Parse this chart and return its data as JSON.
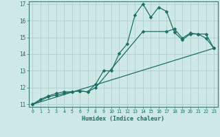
{
  "xlabel": "Humidex (Indice chaleur)",
  "bg_color": "#cde8e5",
  "line_color": "#1a6e64",
  "grid_color": "#b0cfcc",
  "spine_color": "#3a7a70",
  "tick_color": "#1a6e64",
  "xlim": [
    -0.5,
    23.5
  ],
  "ylim": [
    10.85,
    17.15
  ],
  "xticks": [
    0,
    1,
    2,
    3,
    4,
    5,
    6,
    7,
    8,
    9,
    10,
    11,
    12,
    13,
    14,
    15,
    16,
    17,
    18,
    19,
    20,
    21,
    22,
    23
  ],
  "yticks": [
    11,
    12,
    13,
    14,
    15,
    16,
    17
  ],
  "series": [
    {
      "x": [
        0,
        1,
        2,
        3,
        4,
        5,
        6,
        7,
        8,
        9,
        10,
        11,
        12,
        13,
        14,
        15,
        16,
        17,
        18,
        19,
        20,
        21,
        22,
        23
      ],
      "y": [
        11.0,
        11.3,
        11.5,
        11.65,
        11.75,
        11.75,
        11.8,
        11.75,
        12.2,
        13.0,
        13.0,
        14.05,
        14.6,
        16.35,
        17.0,
        16.2,
        16.8,
        16.55,
        15.3,
        14.85,
        15.2,
        15.2,
        14.95,
        14.35
      ],
      "marker": true
    },
    {
      "x": [
        0,
        2,
        3,
        4,
        5,
        6,
        7,
        8,
        14,
        17,
        18,
        19,
        20,
        21,
        22,
        23
      ],
      "y": [
        11.0,
        11.45,
        11.55,
        11.65,
        11.75,
        11.8,
        11.75,
        12.0,
        15.35,
        15.35,
        15.5,
        14.95,
        15.25,
        15.2,
        15.2,
        14.35
      ],
      "marker": true
    },
    {
      "x": [
        0,
        23
      ],
      "y": [
        11.0,
        14.35
      ],
      "marker": false
    }
  ]
}
